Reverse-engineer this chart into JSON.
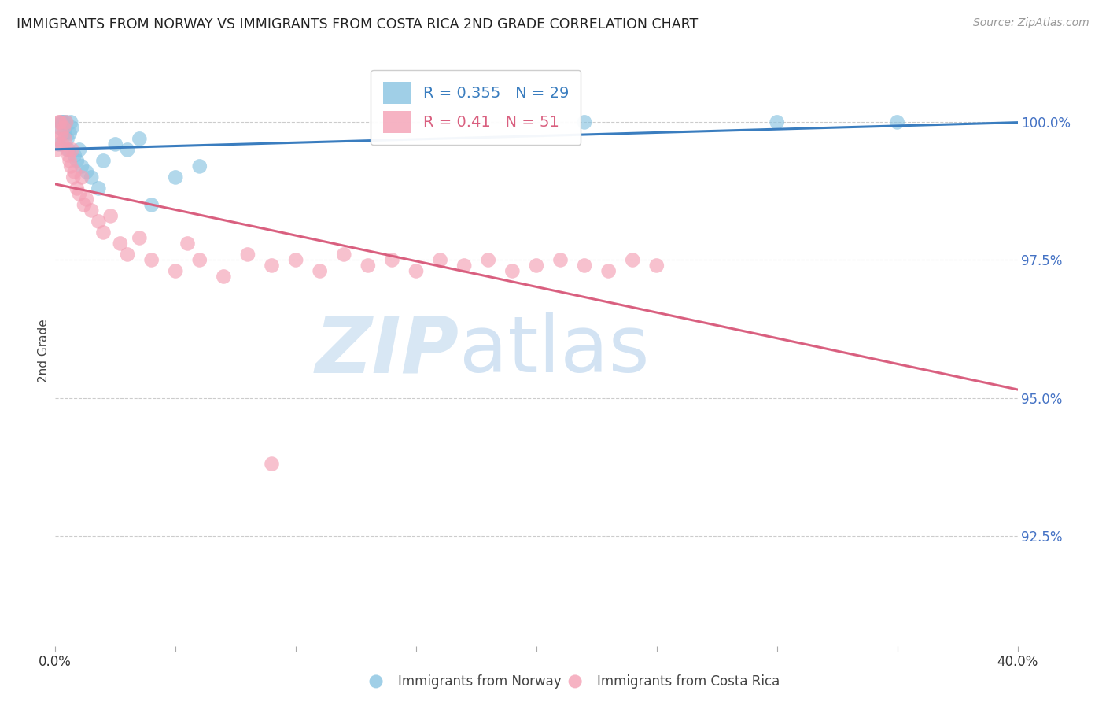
{
  "title": "IMMIGRANTS FROM NORWAY VS IMMIGRANTS FROM COSTA RICA 2ND GRADE CORRELATION CHART",
  "source": "Source: ZipAtlas.com",
  "ylabel": "2nd Grade",
  "right_yticks": [
    100.0,
    97.5,
    95.0,
    92.5
  ],
  "right_ytick_labels": [
    "100.0%",
    "97.5%",
    "95.0%",
    "92.5%"
  ],
  "norway_color": "#89c4e1",
  "costa_rica_color": "#f4a0b5",
  "norway_R": 0.355,
  "norway_N": 29,
  "costa_rica_R": 0.41,
  "costa_rica_N": 51,
  "norway_line_color": "#3a7dbf",
  "costa_rica_line_color": "#d95f7f",
  "legend_label_norway": "Immigrants from Norway",
  "legend_label_costa_rica": "Immigrants from Costa Rica",
  "watermark_zip": "ZIP",
  "watermark_atlas": "atlas",
  "xlim": [
    0.0,
    40.0
  ],
  "ylim": [
    90.5,
    101.2
  ],
  "norway_x": [
    0.15,
    0.2,
    0.25,
    0.3,
    0.35,
    0.4,
    0.45,
    0.5,
    0.55,
    0.6,
    0.65,
    0.7,
    0.8,
    0.9,
    1.0,
    1.1,
    1.3,
    1.5,
    1.8,
    2.0,
    2.5,
    3.0,
    3.5,
    4.0,
    5.0,
    6.0,
    22.0,
    30.0,
    35.0
  ],
  "norway_y": [
    99.6,
    99.9,
    100.0,
    100.0,
    100.0,
    99.8,
    100.0,
    99.7,
    99.5,
    99.8,
    100.0,
    99.9,
    99.4,
    99.3,
    99.5,
    99.2,
    99.1,
    99.0,
    98.8,
    99.3,
    99.6,
    99.5,
    99.7,
    98.5,
    99.0,
    99.2,
    100.0,
    100.0,
    100.0
  ],
  "costa_rica_x": [
    0.05,
    0.1,
    0.15,
    0.2,
    0.25,
    0.3,
    0.35,
    0.4,
    0.45,
    0.5,
    0.55,
    0.6,
    0.65,
    0.7,
    0.75,
    0.8,
    0.9,
    1.0,
    1.1,
    1.2,
    1.3,
    1.5,
    1.8,
    2.0,
    2.3,
    2.7,
    3.0,
    3.5,
    4.0,
    5.0,
    5.5,
    6.0,
    7.0,
    8.0,
    9.0,
    10.0,
    11.0,
    12.0,
    13.0,
    14.0,
    15.0,
    16.0,
    17.0,
    18.0,
    19.0,
    20.0,
    21.0,
    22.0,
    23.0,
    24.0,
    25.0
  ],
  "costa_rica_y": [
    99.5,
    99.7,
    100.0,
    100.0,
    99.8,
    99.6,
    99.9,
    99.7,
    100.0,
    99.5,
    99.4,
    99.3,
    99.2,
    99.5,
    99.0,
    99.1,
    98.8,
    98.7,
    99.0,
    98.5,
    98.6,
    98.4,
    98.2,
    98.0,
    98.3,
    97.8,
    97.6,
    97.9,
    97.5,
    97.3,
    97.8,
    97.5,
    97.2,
    97.6,
    97.4,
    97.5,
    97.3,
    97.6,
    97.4,
    97.5,
    97.3,
    97.5,
    97.4,
    97.5,
    97.3,
    97.4,
    97.5,
    97.4,
    97.3,
    97.5,
    97.4
  ],
  "costa_rica_outlier_x": 9.0,
  "costa_rica_outlier_y": 93.8
}
